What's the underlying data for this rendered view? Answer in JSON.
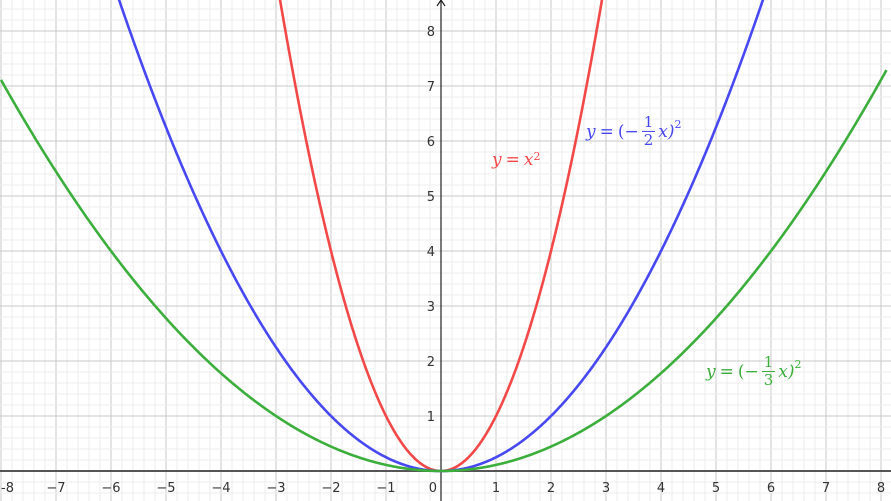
{
  "chart_data": {
    "type": "line",
    "xlim": [
      -8,
      8.1
    ],
    "ylim": [
      -0.5,
      8.6
    ],
    "grid": true,
    "major_tick_step": 1,
    "minor_grid_step": 0.2,
    "x_ticks": [
      "-8",
      "−7",
      "−6",
      "−5",
      "−4",
      "−3",
      "−2",
      "−1",
      "0",
      "1",
      "2",
      "3",
      "4",
      "5",
      "6",
      "7",
      "8"
    ],
    "y_ticks": [
      "1",
      "2",
      "3",
      "4",
      "5",
      "6",
      "7",
      "8"
    ],
    "series": [
      {
        "name": "y = x^2",
        "function": "x^2",
        "color": "#f24848",
        "label": {
          "lhs": "y",
          "eq": "=",
          "body": "x",
          "exp": "2"
        }
      },
      {
        "name": "y = (−1/2 x)^2",
        "function": "(-1/2*x)^2",
        "color": "#4848f2",
        "label": {
          "lhs": "y",
          "eq": "=",
          "open": "(−",
          "num": "1",
          "den": "2",
          "body": "x)",
          "exp": "2"
        }
      },
      {
        "name": "y = (−1/3 x)^2",
        "function": "(-1/3*x)^2",
        "color": "#3cae3c",
        "label": {
          "lhs": "y",
          "eq": "=",
          "open": "(−",
          "num": "1",
          "den": "3",
          "body": "x)",
          "exp": "2"
        }
      }
    ]
  }
}
